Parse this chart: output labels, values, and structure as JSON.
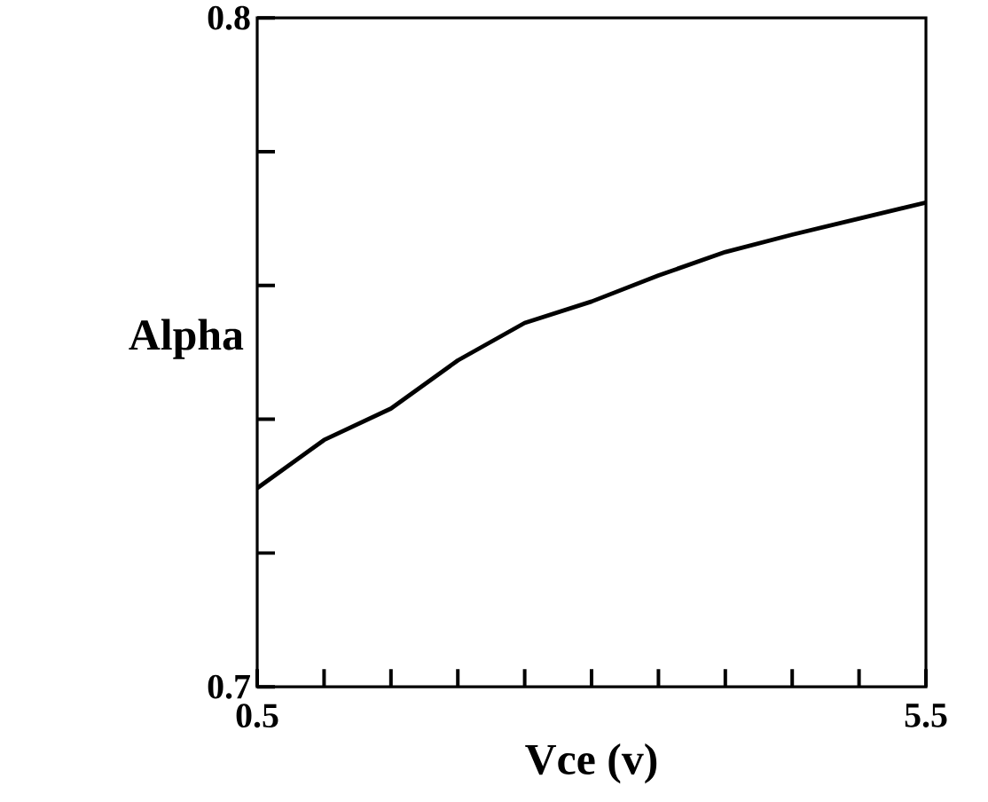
{
  "chart_data": {
    "type": "line",
    "xlabel": "Vce (v)",
    "ylabel": "Alpha",
    "x": [
      0.5,
      1.0,
      1.5,
      2.0,
      2.5,
      3.0,
      3.5,
      4.0,
      4.5,
      5.0,
      5.5
    ],
    "series": [
      {
        "color": "#000000",
        "values": [
          0.7297,
          0.7369,
          0.7416,
          0.7488,
          0.7544,
          0.7576,
          0.7615,
          0.765,
          0.7676,
          0.77,
          0.7724
        ]
      }
    ],
    "xlim": [
      0.5,
      5.5
    ],
    "ylim": [
      0.7,
      0.8
    ],
    "xticks": [
      0.5,
      {
        "value": 1.0,
        "label": null
      },
      {
        "value": 1.5,
        "label": null
      },
      {
        "value": 2.0,
        "label": null
      },
      {
        "value": 2.5,
        "label": null
      },
      {
        "value": 3.0,
        "label": null
      },
      {
        "value": 3.5,
        "label": null
      },
      {
        "value": 4.0,
        "label": null
      },
      {
        "value": 4.5,
        "label": null
      },
      {
        "value": 5.0,
        "label": null
      },
      5.5
    ],
    "yticks": [
      0.7,
      {
        "value": 0.72,
        "label": null
      },
      {
        "value": 0.74,
        "label": null
      },
      {
        "value": 0.76,
        "label": null
      },
      {
        "value": 0.78,
        "label": null
      },
      0.8
    ],
    "line_style": "solid",
    "marker": "none"
  }
}
